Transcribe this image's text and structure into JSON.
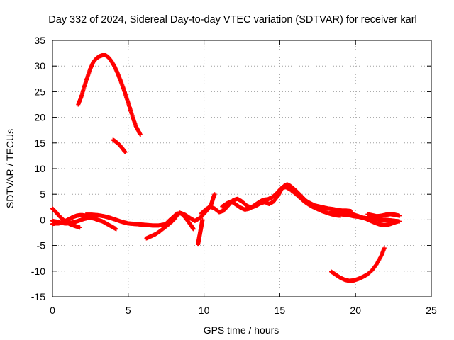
{
  "chart_data": {
    "type": "scatter",
    "title": "Day 332 of 2024, Sidereal Day-to-day VTEC variation (SDTVAR) for receiver karl",
    "xlabel": "GPS time / hours",
    "ylabel": "SDTVAR / TECUs",
    "xlim": [
      0,
      25
    ],
    "ylim": [
      -15,
      35
    ],
    "xticks": [
      0,
      5,
      10,
      15,
      20,
      25
    ],
    "yticks": [
      -15,
      -10,
      -5,
      0,
      5,
      10,
      15,
      20,
      25,
      30,
      35
    ],
    "grid": true,
    "marker": "plus",
    "color": "#ff0000",
    "series": [
      {
        "name": "arc-high",
        "points": [
          [
            1.7,
            22.5
          ],
          [
            1.9,
            24
          ],
          [
            2.1,
            26
          ],
          [
            2.3,
            27.8
          ],
          [
            2.5,
            29.5
          ],
          [
            2.7,
            30.8
          ],
          [
            2.9,
            31.5
          ],
          [
            3.1,
            31.9
          ],
          [
            3.3,
            32.1
          ],
          [
            3.5,
            32.1
          ],
          [
            3.7,
            31.7
          ],
          [
            3.9,
            30.9
          ],
          [
            4.1,
            29.9
          ],
          [
            4.3,
            28.6
          ],
          [
            4.5,
            27.1
          ],
          [
            4.7,
            25.5
          ],
          [
            4.9,
            23.7
          ],
          [
            5.1,
            21.9
          ],
          [
            5.3,
            20
          ],
          [
            5.5,
            18.3
          ],
          [
            5.7,
            17.2
          ],
          [
            5.8,
            16.6
          ]
        ]
      },
      {
        "name": "arc-mid",
        "points": [
          [
            4.0,
            15.6
          ],
          [
            4.2,
            15.2
          ],
          [
            4.4,
            14.7
          ],
          [
            4.6,
            14
          ],
          [
            4.8,
            13.2
          ]
        ]
      },
      {
        "name": "arc-early",
        "points": [
          [
            0.0,
            2.2
          ],
          [
            0.2,
            1.6
          ],
          [
            0.4,
            0.9
          ],
          [
            0.6,
            0.3
          ],
          [
            0.8,
            -0.2
          ],
          [
            1.0,
            -0.6
          ],
          [
            1.2,
            -0.9
          ],
          [
            1.4,
            -1.1
          ],
          [
            1.6,
            -1.3
          ],
          [
            1.8,
            -1.5
          ]
        ]
      },
      {
        "name": "arc-early-b",
        "points": [
          [
            0.0,
            -0.8
          ],
          [
            0.2,
            -0.7
          ],
          [
            0.4,
            -0.7
          ],
          [
            0.6,
            -0.5
          ],
          [
            0.8,
            -0.3
          ],
          [
            1.0,
            0
          ],
          [
            1.2,
            0.3
          ],
          [
            1.4,
            0.6
          ],
          [
            1.6,
            0.8
          ],
          [
            1.8,
            0.9
          ],
          [
            2.0,
            0.9
          ],
          [
            2.2,
            0.8
          ],
          [
            2.4,
            0.7
          ],
          [
            2.6,
            0.6
          ],
          [
            2.8,
            0.6
          ]
        ]
      },
      {
        "name": "arc-early-c",
        "points": [
          [
            0.0,
            -0.2
          ],
          [
            0.3,
            -0.4
          ],
          [
            0.6,
            -0.6
          ],
          [
            0.9,
            -0.7
          ],
          [
            1.2,
            -0.6
          ],
          [
            1.5,
            -0.4
          ],
          [
            1.8,
            -0.1
          ],
          [
            2.1,
            0.2
          ],
          [
            2.4,
            0.4
          ],
          [
            2.7,
            0.3
          ],
          [
            3.0,
            0
          ],
          [
            3.3,
            -0.3
          ],
          [
            3.6,
            -0.8
          ],
          [
            3.9,
            -1.3
          ],
          [
            4.2,
            -1.8
          ]
        ]
      },
      {
        "name": "arc-early-d",
        "points": [
          [
            2.2,
            1.0
          ],
          [
            2.6,
            1.0
          ],
          [
            3.0,
            0.9
          ],
          [
            3.4,
            0.7
          ],
          [
            3.8,
            0.4
          ],
          [
            4.2,
            0
          ],
          [
            4.6,
            -0.4
          ],
          [
            5.0,
            -0.7
          ],
          [
            5.4,
            -0.8
          ],
          [
            5.8,
            -0.9
          ],
          [
            6.2,
            -1.0
          ],
          [
            6.6,
            -1.1
          ],
          [
            7.0,
            -1.1
          ],
          [
            7.4,
            -0.9
          ],
          [
            7.8,
            -0.6
          ]
        ]
      },
      {
        "name": "arc-morning",
        "points": [
          [
            6.2,
            -3.6
          ],
          [
            6.5,
            -3.2
          ],
          [
            6.8,
            -2.8
          ],
          [
            7.1,
            -2.2
          ],
          [
            7.4,
            -1.5
          ],
          [
            7.7,
            -0.8
          ],
          [
            8.0,
            0
          ],
          [
            8.2,
            0.8
          ],
          [
            8.4,
            1.4
          ],
          [
            8.6,
            1.0
          ],
          [
            8.8,
            0.3
          ],
          [
            9.0,
            -0.5
          ],
          [
            9.2,
            -1.3
          ],
          [
            9.3,
            -1.8
          ]
        ]
      },
      {
        "name": "arc-morning-b",
        "points": [
          [
            7.6,
            -0.4
          ],
          [
            7.9,
            0.4
          ],
          [
            8.2,
            1.2
          ],
          [
            8.5,
            1.3
          ],
          [
            8.8,
            0.9
          ],
          [
            9.1,
            0.3
          ],
          [
            9.4,
            -0.2
          ],
          [
            9.7,
            0.3
          ],
          [
            10.0,
            1.2
          ],
          [
            10.3,
            2.2
          ],
          [
            10.5,
            3.2
          ],
          [
            10.6,
            4.2
          ],
          [
            10.7,
            5.0
          ]
        ]
      },
      {
        "name": "arc-spike",
        "points": [
          [
            9.6,
            -4.8
          ],
          [
            9.65,
            -4.0
          ],
          [
            9.7,
            -3.2
          ],
          [
            9.75,
            -2.4
          ],
          [
            9.8,
            -1.6
          ],
          [
            9.85,
            -0.8
          ],
          [
            9.9,
            0
          ]
        ]
      },
      {
        "name": "arc-noon",
        "points": [
          [
            9.8,
            1.2
          ],
          [
            10.1,
            2.0
          ],
          [
            10.4,
            2.6
          ],
          [
            10.7,
            2.2
          ],
          [
            11.0,
            1.5
          ],
          [
            11.3,
            1.8
          ],
          [
            11.6,
            2.8
          ],
          [
            11.9,
            3.8
          ],
          [
            12.2,
            4.1
          ],
          [
            12.5,
            3.6
          ],
          [
            12.8,
            2.8
          ],
          [
            13.1,
            2.4
          ],
          [
            13.4,
            2.7
          ],
          [
            13.7,
            3.2
          ],
          [
            14.0,
            3.5
          ],
          [
            14.3,
            3.1
          ],
          [
            14.6,
            3.6
          ],
          [
            14.9,
            4.8
          ],
          [
            15.1,
            5.9
          ],
          [
            15.3,
            6.7
          ],
          [
            15.5,
            6.9
          ],
          [
            15.7,
            6.6
          ],
          [
            15.9,
            6.1
          ],
          [
            16.1,
            5.6
          ],
          [
            16.3,
            5.0
          ],
          [
            16.5,
            4.4
          ],
          [
            16.7,
            3.8
          ],
          [
            16.9,
            3.4
          ],
          [
            17.1,
            3.1
          ],
          [
            17.3,
            2.8
          ],
          [
            17.6,
            2.6
          ],
          [
            17.9,
            2.4
          ],
          [
            18.2,
            2.2
          ],
          [
            18.5,
            2.1
          ],
          [
            18.8,
            1.9
          ],
          [
            19.1,
            1.8
          ],
          [
            19.4,
            1.8
          ],
          [
            19.7,
            1.7
          ]
        ]
      },
      {
        "name": "arc-noon-b",
        "points": [
          [
            11.2,
            2.6
          ],
          [
            11.5,
            3.2
          ],
          [
            11.8,
            3.6
          ],
          [
            12.1,
            3.0
          ],
          [
            12.4,
            2.4
          ],
          [
            12.7,
            2.0
          ],
          [
            13.0,
            2.2
          ],
          [
            13.3,
            2.8
          ],
          [
            13.6,
            3.4
          ],
          [
            13.9,
            3.9
          ],
          [
            14.2,
            4.0
          ],
          [
            14.5,
            4.4
          ],
          [
            14.8,
            5.2
          ],
          [
            15.1,
            6.2
          ],
          [
            15.4,
            6.4
          ],
          [
            15.7,
            5.9
          ],
          [
            16.0,
            5.2
          ],
          [
            16.3,
            4.4
          ],
          [
            16.6,
            3.6
          ],
          [
            16.9,
            3.0
          ],
          [
            17.2,
            2.5
          ],
          [
            17.5,
            2.1
          ],
          [
            17.8,
            1.7
          ],
          [
            18.1,
            1.4
          ],
          [
            18.4,
            1.1
          ],
          [
            18.7,
            0.9
          ],
          [
            19.0,
            0.8
          ]
        ]
      },
      {
        "name": "arc-evening",
        "points": [
          [
            18.4,
            1.6
          ],
          [
            18.7,
            1.3
          ],
          [
            19.0,
            1.1
          ],
          [
            19.3,
            1.0
          ],
          [
            19.6,
            0.9
          ],
          [
            19.9,
            0.7
          ],
          [
            20.2,
            0.6
          ],
          [
            20.5,
            0.4
          ],
          [
            20.8,
            0.3
          ],
          [
            21.1,
            0.2
          ],
          [
            21.4,
            0.1
          ],
          [
            21.7,
            0
          ],
          [
            22.0,
            0
          ],
          [
            22.3,
            -0.1
          ],
          [
            22.6,
            -0.2
          ],
          [
            22.9,
            -0.3
          ]
        ]
      },
      {
        "name": "arc-evening-b",
        "points": [
          [
            19.5,
            1.3
          ],
          [
            19.8,
            1.1
          ],
          [
            20.1,
            0.8
          ],
          [
            20.4,
            0.5
          ],
          [
            20.7,
            0.2
          ],
          [
            21.0,
            -0.2
          ],
          [
            21.3,
            -0.6
          ],
          [
            21.6,
            -0.9
          ],
          [
            21.9,
            -1.0
          ],
          [
            22.2,
            -0.9
          ],
          [
            22.5,
            -0.6
          ],
          [
            22.8,
            -0.3
          ]
        ]
      },
      {
        "name": "arc-evening-c",
        "points": [
          [
            20.8,
            1.1
          ],
          [
            21.1,
            0.9
          ],
          [
            21.4,
            0.7
          ],
          [
            21.7,
            0.8
          ],
          [
            22.0,
            1.0
          ],
          [
            22.3,
            1.1
          ],
          [
            22.6,
            1.0
          ],
          [
            22.9,
            0.8
          ]
        ]
      },
      {
        "name": "arc-low",
        "points": [
          [
            18.4,
            -10.1
          ],
          [
            18.7,
            -10.7
          ],
          [
            19.0,
            -11.3
          ],
          [
            19.3,
            -11.7
          ],
          [
            19.6,
            -11.9
          ],
          [
            19.9,
            -11.8
          ],
          [
            20.2,
            -11.5
          ],
          [
            20.5,
            -11.1
          ],
          [
            20.8,
            -10.6
          ],
          [
            21.1,
            -9.8
          ],
          [
            21.4,
            -8.6
          ],
          [
            21.7,
            -7.0
          ],
          [
            21.9,
            -5.5
          ]
        ]
      }
    ]
  }
}
